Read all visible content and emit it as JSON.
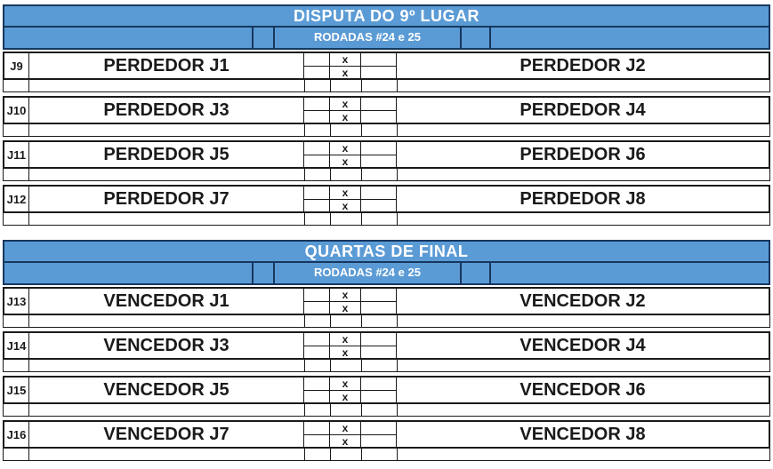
{
  "colors": {
    "header_bg": "#5b9bd5",
    "header_border": "#17375e",
    "header_text": "#ffffff",
    "grid_line": "#1a1a1a",
    "cell_text": "#1a1a1a",
    "background": "#ffffff"
  },
  "sections": [
    {
      "title": "DISPUTA DO 9º LUGAR",
      "subheader": "RODADAS #24 e 25",
      "matches": [
        {
          "id": "J9",
          "left": "PERDEDOR J1",
          "right": "PERDEDOR J2",
          "x_top": "x",
          "x_bottom": "x"
        },
        {
          "id": "J10",
          "left": "PERDEDOR J3",
          "right": "PERDEDOR J4",
          "x_top": "x",
          "x_bottom": "x"
        },
        {
          "id": "J11",
          "left": "PERDEDOR J5",
          "right": "PERDEDOR J6",
          "x_top": "x",
          "x_bottom": "x"
        },
        {
          "id": "J12",
          "left": "PERDEDOR J7",
          "right": "PERDEDOR J8",
          "x_top": "x",
          "x_bottom": "x"
        }
      ]
    },
    {
      "title": "QUARTAS DE FINAL",
      "subheader": "RODADAS #24 e 25",
      "matches": [
        {
          "id": "J13",
          "left": "VENCEDOR J1",
          "right": "VENCEDOR J2",
          "x_top": "x",
          "x_bottom": "x"
        },
        {
          "id": "J14",
          "left": "VENCEDOR J3",
          "right": "VENCEDOR J4",
          "x_top": "x",
          "x_bottom": "x"
        },
        {
          "id": "J15",
          "left": "VENCEDOR J5",
          "right": "VENCEDOR J6",
          "x_top": "x",
          "x_bottom": "x"
        },
        {
          "id": "J16",
          "left": "VENCEDOR J7",
          "right": "VENCEDOR J8",
          "x_top": "x",
          "x_bottom": "x"
        }
      ]
    }
  ]
}
